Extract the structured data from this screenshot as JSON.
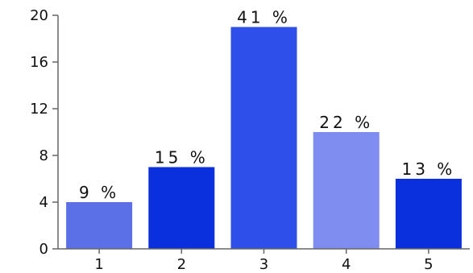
{
  "chart_data": {
    "type": "bar",
    "categories": [
      "1",
      "2",
      "3",
      "4",
      "5"
    ],
    "values": [
      4,
      7,
      19,
      10,
      6
    ],
    "data_labels": [
      "9 %",
      "15 %",
      "41 %",
      "22 %",
      "13 %"
    ],
    "title": "",
    "xlabel": "",
    "ylabel": "",
    "ylim": [
      0,
      20
    ],
    "yticks": [
      0,
      4,
      8,
      12,
      16,
      20
    ],
    "grid": false,
    "bar_colors": [
      "#5b6fe6",
      "#0a2fdc",
      "#2f4fea",
      "#7f8df0",
      "#0a2fdc"
    ],
    "axis_color": "#666666"
  }
}
